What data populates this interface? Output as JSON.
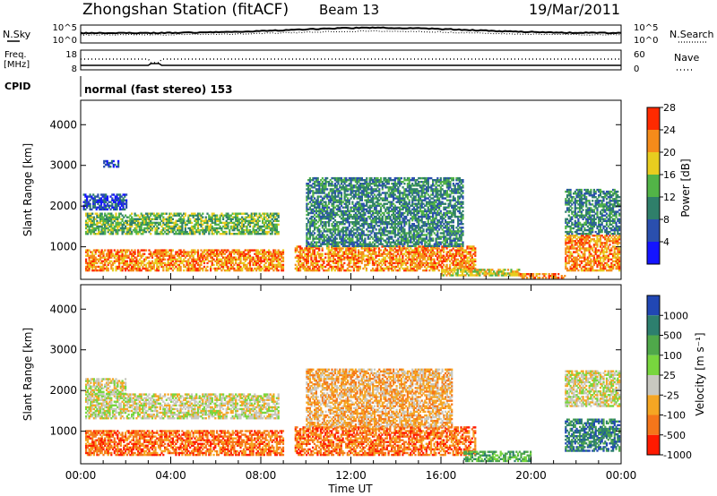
{
  "header": {
    "title": "Zhongshan Station (fitACF)",
    "beam": "Beam 13",
    "date": "19/Mar/2011"
  },
  "top_panels": {
    "nsky_label": "N.Sky",
    "nsky_ticks": [
      "10^5",
      "10^0"
    ],
    "nsearch_label": "N.Search",
    "nsearch_ticks": [
      "10^5",
      "10^0"
    ],
    "freq_label": "Freq.",
    "freq_unit": "[MHz]",
    "freq_ticks": [
      "18",
      "8"
    ],
    "nave_label": "Nave",
    "nave_ticks": [
      "60",
      "0"
    ],
    "cpid_label": "CPID",
    "cpid_text": "normal (fast stereo) 153"
  },
  "chart_data": [
    {
      "type": "heatmap",
      "parameter": "power",
      "ylabel": "Slant Range [km]",
      "ylim": [
        200,
        4600
      ],
      "yticks": [
        "1000",
        "2000",
        "3000",
        "4000"
      ],
      "xlim": [
        0,
        24
      ],
      "colorbar": {
        "label": "Power [dB]",
        "ticks": [
          "4",
          "8",
          "12",
          "16",
          "20",
          "24",
          "28"
        ],
        "colors": [
          "#1414ff",
          "#2a4fae",
          "#2f7f6a",
          "#52b447",
          "#e8cd1f",
          "#f58b1a",
          "#ff2a00"
        ]
      },
      "echo_regions": [
        {
          "t0": 0.2,
          "t1": 9.0,
          "r0": 400,
          "r1": 900,
          "level": 5
        },
        {
          "t0": 0.2,
          "t1": 8.8,
          "r0": 1300,
          "r1": 1800,
          "level": 3
        },
        {
          "t0": 0.1,
          "t1": 2.0,
          "r0": 1900,
          "r1": 2300,
          "level": 1
        },
        {
          "t0": 1.0,
          "t1": 1.7,
          "r0": 2950,
          "r1": 3100,
          "level": 1
        },
        {
          "t0": 9.5,
          "t1": 17.5,
          "r0": 400,
          "r1": 1000,
          "level": 5
        },
        {
          "t0": 10.0,
          "t1": 17.0,
          "r0": 1000,
          "r1": 2700,
          "level": 2
        },
        {
          "t0": 16.0,
          "t1": 19.5,
          "r0": 280,
          "r1": 450,
          "level": 4
        },
        {
          "t0": 19.5,
          "t1": 21.5,
          "r0": 220,
          "r1": 330,
          "level": 5
        },
        {
          "t0": 21.5,
          "t1": 23.9,
          "r0": 400,
          "r1": 1300,
          "level": 5
        },
        {
          "t0": 21.5,
          "t1": 23.9,
          "r0": 1300,
          "r1": 2400,
          "level": 2
        }
      ]
    },
    {
      "type": "heatmap",
      "parameter": "velocity",
      "ylabel": "Slant Range [km]",
      "ylim": [
        200,
        4600
      ],
      "yticks": [
        "1000",
        "2000",
        "3000",
        "4000"
      ],
      "xlabel": "Time UT",
      "xticks": [
        "00:00",
        "04:00",
        "08:00",
        "12:00",
        "16:00",
        "20:00",
        "00:00"
      ],
      "xlim": [
        0,
        24
      ],
      "colorbar": {
        "label": "Velocity [m s⁻¹]",
        "ticks": [
          "1000",
          "500",
          "100",
          "25",
          "-25",
          "-100",
          "-500",
          "-1000"
        ],
        "colors": [
          "#2147b4",
          "#2d7f6e",
          "#4fa84a",
          "#78d63e",
          "#c8c8c0",
          "#f5a623",
          "#f5761a",
          "#ff1a00"
        ]
      },
      "echo_regions": [
        {
          "t0": 0.2,
          "t1": 9.0,
          "r0": 400,
          "r1": 1000,
          "level": 6
        },
        {
          "t0": 0.2,
          "t1": 8.8,
          "r0": 1300,
          "r1": 1900,
          "level": 4
        },
        {
          "t0": 0.2,
          "t1": 2.0,
          "r0": 1900,
          "r1": 2300,
          "level": 4
        },
        {
          "t0": 9.5,
          "t1": 17.5,
          "r0": 400,
          "r1": 1100,
          "level": 6
        },
        {
          "t0": 10.0,
          "t1": 16.5,
          "r0": 1100,
          "r1": 2500,
          "level": 5
        },
        {
          "t0": 17.0,
          "t1": 20.0,
          "r0": 250,
          "r1": 500,
          "level": 2
        },
        {
          "t0": 21.5,
          "t1": 23.9,
          "r0": 500,
          "r1": 1300,
          "level": 1
        },
        {
          "t0": 21.5,
          "t1": 23.9,
          "r0": 1600,
          "r1": 2500,
          "level": 4
        }
      ]
    }
  ]
}
